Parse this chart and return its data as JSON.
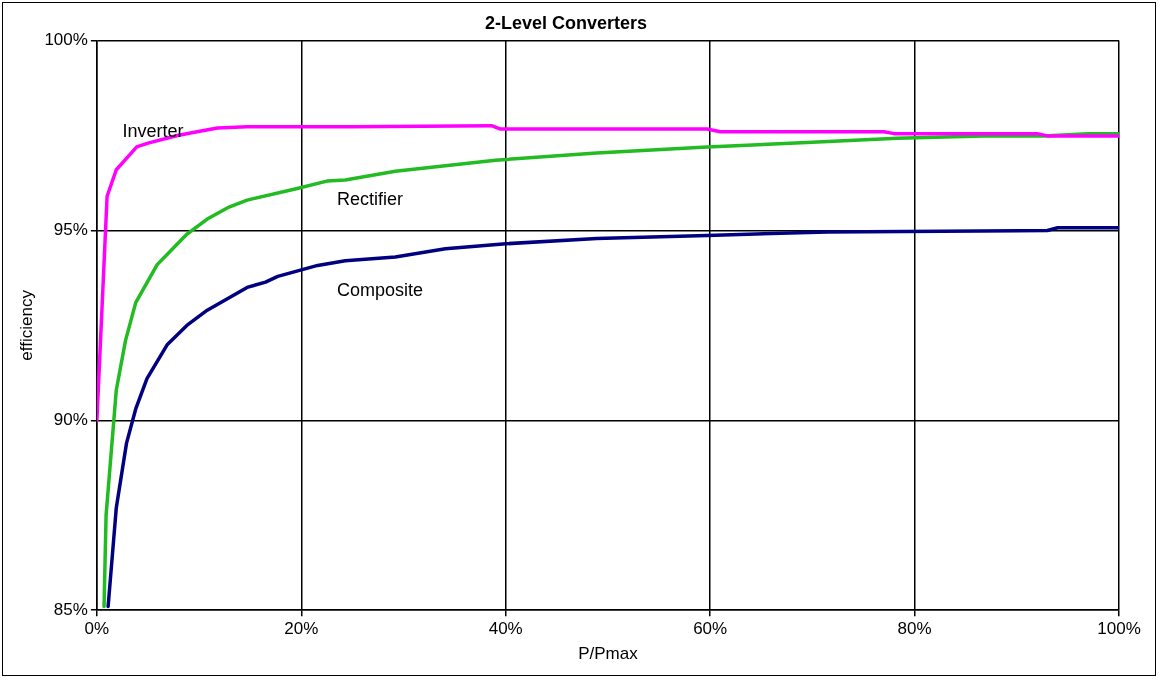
{
  "chart_data": {
    "type": "line",
    "title": "2-Level Converters",
    "xlabel": "P/Pmax",
    "ylabel": "efficiency",
    "xlim": [
      0,
      100
    ],
    "xticks": [
      {
        "value": 0,
        "label": "0%"
      },
      {
        "value": 20,
        "label": "20%"
      },
      {
        "value": 40,
        "label": "40%"
      },
      {
        "value": 60,
        "label": "60%"
      },
      {
        "value": 80,
        "label": "80%"
      },
      {
        "value": 100,
        "label": "100%"
      }
    ],
    "ylim": [
      85,
      100
    ],
    "yticks": [
      {
        "value": 85,
        "label": "85%"
      },
      {
        "value": 90,
        "label": "90%"
      },
      {
        "value": 95,
        "label": "95%"
      },
      {
        "value": 100,
        "label": "100%"
      }
    ],
    "grid": true,
    "legend": false,
    "marker": "none",
    "line_style": "solid",
    "series": [
      {
        "name": "Inverter",
        "color": "#ff00ff",
        "x": [
          0,
          1,
          1.9,
          2.9,
          3.9,
          5,
          7.9,
          9.8,
          11.8,
          14.7,
          25,
          38.6,
          39.5,
          59.7,
          61,
          77,
          78,
          92,
          93,
          100
        ],
        "values": [
          90.0,
          95.9,
          96.6,
          96.9,
          97.2,
          97.3,
          97.5,
          97.6,
          97.7,
          97.73,
          97.73,
          97.76,
          97.67,
          97.67,
          97.6,
          97.6,
          97.55,
          97.55,
          97.49,
          97.49
        ]
      },
      {
        "name": "Rectifier",
        "color": "#22bb22",
        "x": [
          0.7,
          0.9,
          1.9,
          2.8,
          3.8,
          5.9,
          8.8,
          10.8,
          12.8,
          14.7,
          19.5,
          22.5,
          24.3,
          29.2,
          39,
          48.9,
          59.7,
          70,
          78.3,
          86.7,
          92.6,
          97,
          100
        ],
        "values": [
          85.1,
          87.5,
          90.8,
          92.1,
          93.1,
          94.1,
          94.9,
          95.3,
          95.6,
          95.8,
          96.1,
          96.3,
          96.33,
          96.56,
          96.85,
          97.04,
          97.2,
          97.32,
          97.43,
          97.49,
          97.49,
          97.55,
          97.55
        ]
      },
      {
        "name": "Composite",
        "color": "#000080",
        "x": [
          1.1,
          1.9,
          2.9,
          3.8,
          4.9,
          6.9,
          8.8,
          10.8,
          14.7,
          16.5,
          17.7,
          21.6,
          24.3,
          29.2,
          34.1,
          40,
          48.9,
          59.7,
          71.5,
          93,
          94,
          100
        ],
        "values": [
          85.1,
          87.7,
          89.4,
          90.3,
          91.1,
          92.0,
          92.5,
          92.9,
          93.5,
          93.64,
          93.79,
          94.08,
          94.2,
          94.3,
          94.52,
          94.65,
          94.79,
          94.87,
          94.96,
          95.0,
          95.07,
          95.07
        ]
      }
    ]
  }
}
